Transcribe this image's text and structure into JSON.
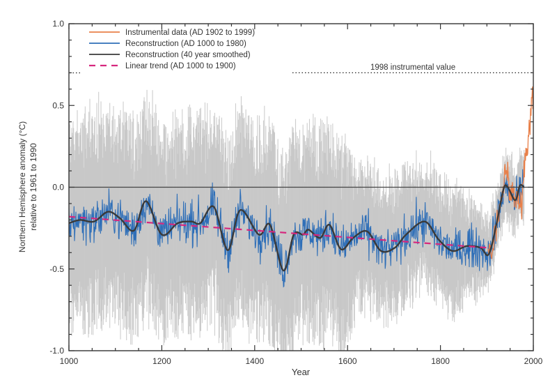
{
  "chart_data": {
    "type": "line",
    "title": "",
    "xlabel": "Year",
    "ylabel_line1": "Northern Hemisphere anomaly (°C)",
    "ylabel_line2": "relative to 1961 to 1990",
    "xlim": [
      1000,
      2000
    ],
    "ylim": [
      -1.0,
      1.0
    ],
    "x_ticks": [
      1000,
      1200,
      1400,
      1600,
      1800,
      2000
    ],
    "x_tick_labels": [
      "1000",
      "1200",
      "1400",
      "1600",
      "1800",
      "2000"
    ],
    "y_ticks": [
      1.0,
      0.5,
      0.0,
      -0.5,
      -1.0
    ],
    "y_tick_labels": [
      "1.0",
      "0.5",
      "0.0",
      "-0.5",
      "-1.0"
    ],
    "legend_position": "top-left",
    "legend": [
      {
        "label": "Instrumental data (AD 1902 to 1999)",
        "color": "#e8804a",
        "style": "solid"
      },
      {
        "label": "Reconstruction (AD 1000 to 1980)",
        "color": "#2f6fb8",
        "style": "solid"
      },
      {
        "label": "Reconstruction (40 year smoothed)",
        "color": "#3a3a3a",
        "style": "solid"
      },
      {
        "label": "Linear trend (AD 1000 to 1900)",
        "color": "#d6287e",
        "style": "dashed"
      }
    ],
    "reference_line": {
      "label": "1998 instrumental value",
      "value": 0.7
    },
    "zero_line": 0.0,
    "series": [
      {
        "name": "Reconstruction (40 year smoothed)",
        "x": [
          1000,
          1024,
          1054,
          1084,
          1110,
          1140,
          1166,
          1200,
          1234,
          1264,
          1283,
          1312,
          1342,
          1369,
          1409,
          1433,
          1462,
          1484,
          1504,
          1516,
          1541,
          1561,
          1586,
          1612,
          1642,
          1672,
          1702,
          1726,
          1766,
          1796,
          1826,
          1856,
          1886,
          1904,
          1921,
          1936,
          1945,
          1961,
          1971,
          1980
        ],
        "y": [
          -0.22,
          -0.2,
          -0.21,
          -0.15,
          -0.19,
          -0.265,
          -0.085,
          -0.29,
          -0.22,
          -0.21,
          -0.22,
          -0.12,
          -0.385,
          -0.14,
          -0.29,
          -0.23,
          -0.51,
          -0.29,
          -0.29,
          -0.26,
          -0.31,
          -0.23,
          -0.38,
          -0.31,
          -0.27,
          -0.39,
          -0.37,
          -0.29,
          -0.21,
          -0.32,
          -0.39,
          -0.36,
          -0.37,
          -0.41,
          -0.22,
          -0.01,
          0.0,
          -0.08,
          0.01,
          0.0
        ]
      },
      {
        "name": "Reconstruction (AD 1000 to 1980)",
        "x_range": [
          1000,
          1980
        ],
        "note_noise_sd": 0.09
      },
      {
        "name": "Instrumental data (AD 1902 to 1999)",
        "x": [
          1902,
          1910,
          1920,
          1930,
          1937,
          1944,
          1950,
          1956,
          1964,
          1970,
          1976,
          1980,
          1985,
          1990,
          1995,
          1998,
          1999
        ],
        "y": [
          -0.38,
          -0.4,
          -0.25,
          -0.12,
          0.05,
          0.12,
          -0.05,
          -0.05,
          -0.08,
          -0.05,
          -0.12,
          0.15,
          0.2,
          0.35,
          0.45,
          0.69,
          0.55
        ]
      },
      {
        "name": "Linear trend (AD 1000 to 1900)",
        "x": [
          1000,
          1900
        ],
        "y": [
          -0.18,
          -0.37
        ]
      }
    ],
    "uncertainty_band": {
      "color": "#c4c4c4",
      "x": [
        1000,
        1590,
        1620,
        1850,
        1900,
        1980
      ],
      "half_width": [
        0.52,
        0.52,
        0.36,
        0.3,
        0.17,
        0.15
      ]
    }
  }
}
